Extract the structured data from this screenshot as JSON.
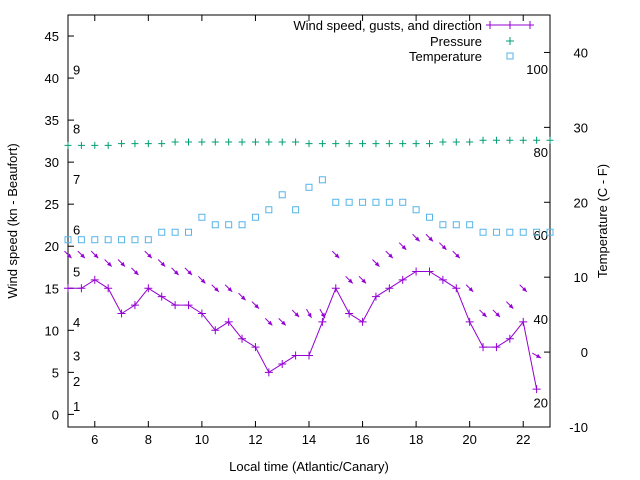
{
  "chart_data": {
    "type": "line",
    "title": "",
    "xlabel": "Local time (Atlantic/Canary)",
    "ylabel_left": "Wind speed (kn - Beaufort)",
    "ylabel_right": "Temperature (C - F)",
    "xlim": [
      5,
      23
    ],
    "x_ticks": [
      6,
      8,
      10,
      12,
      14,
      16,
      18,
      20,
      22
    ],
    "ylim_left": [
      -1.5,
      47.5
    ],
    "y_ticks_left": [
      0,
      5,
      10,
      15,
      20,
      25,
      30,
      35,
      40,
      45
    ],
    "ylim_right": [
      -10,
      45
    ],
    "y_ticks_right": [
      -10,
      0,
      10,
      20,
      30,
      40
    ],
    "beaufort_labels": [
      {
        "text": "1",
        "y": 1
      },
      {
        "text": "2",
        "y": 4
      },
      {
        "text": "3",
        "y": 7
      },
      {
        "text": "4",
        "y": 11
      },
      {
        "text": "5",
        "y": 17
      },
      {
        "text": "6",
        "y": 22
      },
      {
        "text": "7",
        "y": 28
      },
      {
        "text": "8",
        "y": 34
      },
      {
        "text": "9",
        "y": 41
      }
    ],
    "fahrenheit_labels": [
      {
        "text": "20",
        "y": -6.7
      },
      {
        "text": "40",
        "y": 4.4
      },
      {
        "text": "60",
        "y": 15.6
      },
      {
        "text": "80",
        "y": 26.7
      },
      {
        "text": "100",
        "y": 37.8
      }
    ],
    "grid": false,
    "legend_position": "top-right",
    "series": [
      {
        "name": "Wind speed, gusts, and direction",
        "axis": "left",
        "color": "#9400d3",
        "x": [
          5,
          5.5,
          6,
          6.5,
          7,
          7.5,
          8,
          8.5,
          9,
          9.5,
          10,
          10.5,
          11,
          11.5,
          12,
          12.5,
          13,
          13.5,
          14,
          14.5,
          15,
          15.5,
          16,
          16.5,
          17,
          17.5,
          18,
          18.5,
          19,
          19.5,
          20,
          20.5,
          21,
          21.5,
          22,
          22.5
        ],
        "values": [
          15,
          15,
          16,
          15,
          12,
          13,
          15,
          14,
          13,
          13,
          12,
          10,
          11,
          9,
          8,
          5,
          6,
          7,
          7,
          11,
          15,
          12,
          11,
          14,
          15,
          16,
          17,
          17,
          16,
          15,
          11,
          8,
          8,
          9,
          11,
          3
        ],
        "gusts": [
          19,
          19,
          19,
          18,
          18,
          17,
          19,
          18,
          17,
          17,
          16,
          15,
          15,
          14,
          13,
          11,
          11,
          12,
          12,
          12,
          19,
          16,
          16,
          18,
          19,
          20,
          21,
          21,
          20,
          19,
          15,
          12,
          12,
          13,
          15,
          7
        ],
        "direction_deg": [
          315,
          315,
          315,
          315,
          315,
          315,
          315,
          315,
          315,
          315,
          315,
          315,
          315,
          315,
          315,
          315,
          315,
          315,
          330,
          330,
          315,
          315,
          315,
          315,
          315,
          315,
          315,
          315,
          315,
          315,
          315,
          315,
          315,
          315,
          315,
          300
        ]
      },
      {
        "name": "Pressure",
        "axis": "left",
        "color": "#009e73",
        "x": [
          5,
          5.5,
          6,
          6.5,
          7,
          7.5,
          8,
          8.5,
          9,
          9.5,
          10,
          10.5,
          11,
          11.5,
          12,
          12.5,
          13,
          13.5,
          14,
          14.5,
          15,
          15.5,
          16,
          16.5,
          17,
          17.5,
          18,
          18.5,
          19,
          19.5,
          20,
          20.5,
          21,
          21.5,
          22,
          22.5,
          23
        ],
        "values": [
          32,
          32,
          32,
          32,
          32.2,
          32.2,
          32.2,
          32.2,
          32.4,
          32.4,
          32.4,
          32.4,
          32.4,
          32.4,
          32.4,
          32.4,
          32.4,
          32.4,
          32.2,
          32.2,
          32.2,
          32.2,
          32.2,
          32.2,
          32.2,
          32.2,
          32.2,
          32.2,
          32.4,
          32.4,
          32.4,
          32.6,
          32.6,
          32.6,
          32.6,
          32.6,
          32.6
        ]
      },
      {
        "name": "Temperature",
        "axis": "right",
        "color": "#56b4e9",
        "x": [
          5,
          5.5,
          6,
          6.5,
          7,
          7.5,
          8,
          8.5,
          9,
          9.5,
          10,
          10.5,
          11,
          11.5,
          12,
          12.5,
          13,
          13.5,
          14,
          14.5,
          15,
          15.5,
          16,
          16.5,
          17,
          17.5,
          18,
          18.5,
          19,
          19.5,
          20,
          20.5,
          21,
          21.5,
          22,
          22.5,
          23
        ],
        "values": [
          15,
          15,
          15,
          15,
          15,
          15,
          15,
          16,
          16,
          16,
          18,
          17,
          17,
          17,
          18,
          19,
          21,
          19,
          22,
          23,
          20,
          20,
          20,
          20,
          20,
          20,
          19,
          18,
          17,
          17,
          17,
          16,
          16,
          16,
          16,
          16,
          16
        ]
      }
    ]
  }
}
